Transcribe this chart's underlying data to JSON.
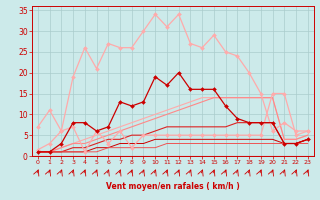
{
  "xlabel": "Vent moyen/en rafales ( km/h )",
  "bg_color": "#cceaea",
  "grid_color": "#aacccc",
  "label_color": "#cc0000",
  "x_ticks": [
    0,
    1,
    2,
    3,
    4,
    5,
    6,
    7,
    8,
    9,
    10,
    11,
    12,
    13,
    14,
    15,
    16,
    17,
    18,
    19,
    20,
    21,
    22,
    23
  ],
  "ylim": [
    0,
    36
  ],
  "yticks": [
    0,
    5,
    10,
    15,
    20,
    25,
    30,
    35
  ],
  "series": [
    {
      "x": [
        0,
        1,
        2,
        3,
        4,
        5,
        6,
        7,
        8,
        9,
        10,
        11,
        12,
        13,
        14,
        15,
        16,
        17,
        18,
        19,
        20,
        21,
        22,
        23
      ],
      "y": [
        1.5,
        3,
        6,
        19,
        26,
        21,
        27,
        26,
        26,
        30,
        34,
        31,
        34,
        27,
        26,
        29,
        25,
        24,
        20,
        15,
        6,
        8,
        6,
        6
      ],
      "color": "#ffaaaa",
      "marker": "D",
      "markersize": 2.0,
      "linewidth": 0.9,
      "zorder": 3
    },
    {
      "x": [
        0,
        1,
        2,
        3,
        4,
        5,
        6,
        7,
        8,
        9,
        10,
        11,
        12,
        13,
        14,
        15,
        16,
        17,
        18,
        19,
        20,
        21,
        22,
        23
      ],
      "y": [
        7,
        11,
        6,
        7,
        1,
        6,
        3,
        6,
        2,
        5,
        5,
        5,
        5,
        5,
        5,
        5,
        5,
        5,
        5,
        5,
        15,
        15,
        5,
        6
      ],
      "color": "#ffaaaa",
      "marker": "D",
      "markersize": 2.0,
      "linewidth": 0.9,
      "zorder": 3
    },
    {
      "x": [
        0,
        1,
        2,
        3,
        4,
        5,
        6,
        7,
        8,
        9,
        10,
        11,
        12,
        13,
        14,
        15,
        16,
        17,
        18,
        19,
        20,
        21,
        22,
        23
      ],
      "y": [
        1,
        1,
        3,
        8,
        8,
        6,
        7,
        13,
        12,
        13,
        19,
        17,
        20,
        16,
        16,
        16,
        12,
        9,
        8,
        8,
        8,
        3,
        3,
        4
      ],
      "color": "#cc0000",
      "marker": "D",
      "markersize": 2.0,
      "linewidth": 0.9,
      "zorder": 5
    },
    {
      "x": [
        0,
        1,
        2,
        3,
        4,
        5,
        6,
        7,
        8,
        9,
        10,
        11,
        12,
        13,
        14,
        15,
        16,
        17,
        18,
        19,
        20,
        21,
        22,
        23
      ],
      "y": [
        1,
        1,
        2,
        3,
        4,
        5,
        6,
        7,
        8,
        9,
        10,
        11,
        12,
        13,
        14,
        14,
        14,
        14,
        14,
        14,
        14,
        4,
        4,
        5
      ],
      "color": "#ffaaaa",
      "marker": null,
      "linewidth": 0.8,
      "zorder": 2
    },
    {
      "x": [
        0,
        1,
        2,
        3,
        4,
        5,
        6,
        7,
        8,
        9,
        10,
        11,
        12,
        13,
        14,
        15,
        16,
        17,
        18,
        19,
        20,
        21,
        22,
        23
      ],
      "y": [
        1,
        1,
        2,
        3,
        3,
        4,
        5,
        6,
        7,
        8,
        9,
        10,
        11,
        12,
        13,
        14,
        14,
        14,
        14,
        14,
        14,
        4,
        4,
        5
      ],
      "color": "#ff8888",
      "marker": null,
      "linewidth": 0.8,
      "zorder": 2
    },
    {
      "x": [
        0,
        1,
        2,
        3,
        4,
        5,
        6,
        7,
        8,
        9,
        10,
        11,
        12,
        13,
        14,
        15,
        16,
        17,
        18,
        19,
        20,
        21,
        22,
        23
      ],
      "y": [
        1,
        1,
        1,
        2,
        2,
        3,
        4,
        4,
        5,
        5,
        6,
        7,
        7,
        7,
        7,
        7,
        7,
        8,
        8,
        8,
        8,
        3,
        3,
        4
      ],
      "color": "#dd2222",
      "marker": null,
      "linewidth": 0.8,
      "zorder": 2
    },
    {
      "x": [
        0,
        1,
        2,
        3,
        4,
        5,
        6,
        7,
        8,
        9,
        10,
        11,
        12,
        13,
        14,
        15,
        16,
        17,
        18,
        19,
        20,
        21,
        22,
        23
      ],
      "y": [
        1,
        1,
        1,
        1,
        1,
        2,
        2,
        3,
        3,
        3,
        4,
        4,
        4,
        4,
        4,
        4,
        4,
        4,
        4,
        4,
        4,
        3,
        3,
        4
      ],
      "color": "#cc0000",
      "marker": null,
      "linewidth": 0.7,
      "zorder": 2
    },
    {
      "x": [
        0,
        1,
        2,
        3,
        4,
        5,
        6,
        7,
        8,
        9,
        10,
        11,
        12,
        13,
        14,
        15,
        16,
        17,
        18,
        19,
        20,
        21,
        22,
        23
      ],
      "y": [
        1,
        1,
        1,
        1,
        1,
        1,
        2,
        2,
        2,
        2,
        2,
        3,
        3,
        3,
        3,
        3,
        3,
        3,
        3,
        3,
        3,
        3,
        3,
        3
      ],
      "color": "#ee5555",
      "marker": null,
      "linewidth": 0.7,
      "zorder": 2
    }
  ]
}
